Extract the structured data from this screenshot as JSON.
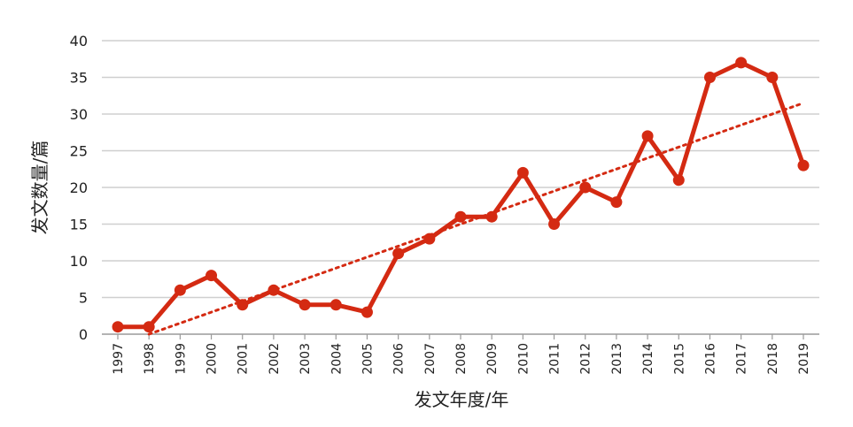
{
  "chart_data": {
    "type": "line",
    "title": "",
    "xlabel": "发文年度/年",
    "ylabel": "发文数量/篇",
    "ylim": [
      0,
      40
    ],
    "yticks": [
      0,
      5,
      10,
      15,
      20,
      25,
      30,
      35,
      40
    ],
    "grid": true,
    "legend": "none",
    "categories": [
      "1997",
      "1998",
      "1999",
      "2000",
      "2001",
      "2002",
      "2003",
      "2004",
      "2005",
      "2006",
      "2007",
      "2008",
      "2009",
      "2010",
      "2011",
      "2012",
      "2013",
      "2014",
      "2015",
      "2016",
      "2017",
      "2018",
      "2019"
    ],
    "series": [
      {
        "values": [
          1,
          1,
          6,
          8,
          4,
          6,
          4,
          4,
          3,
          11,
          13,
          16,
          16,
          22,
          15,
          20,
          18,
          27,
          21,
          35,
          37,
          35,
          23
        ],
        "color": "#d42a12",
        "marker": "circle"
      }
    ],
    "trendline": {
      "style": "dotted",
      "color": "#d42a12",
      "start": {
        "x": "1998",
        "y": 0
      },
      "end": {
        "x": "2019",
        "y": 31.5
      }
    }
  }
}
